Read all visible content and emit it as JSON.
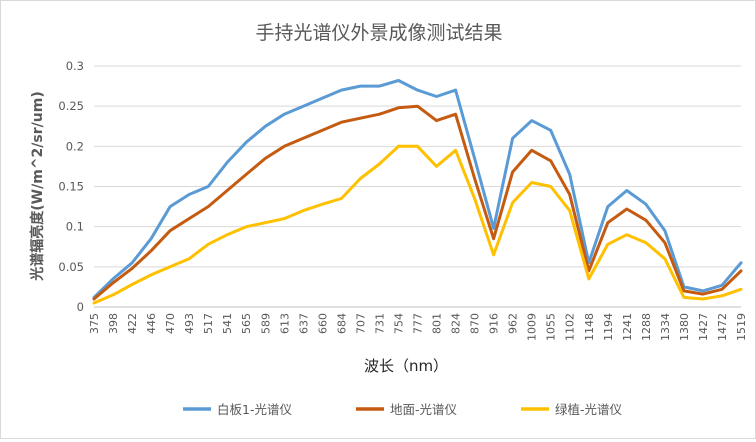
{
  "chart_data": {
    "type": "line",
    "title": "手持光谱仪外景成像测试结果",
    "xlabel": "波长（nm）",
    "ylabel": "光谱辐亮度(W/m^2/sr/um)",
    "ylim": [
      0,
      0.3
    ],
    "yticks": [
      "0",
      "0.05",
      "0.1",
      "0.15",
      "0.2",
      "0.25",
      "0.3"
    ],
    "grid": "horizontal",
    "legend_position": "bottom",
    "x_tick_labels": [
      "375",
      "398",
      "422",
      "446",
      "470",
      "493",
      "517",
      "541",
      "565",
      "589",
      "613",
      "637",
      "660",
      "684",
      "707",
      "731",
      "754",
      "777",
      "801",
      "824",
      "870",
      "916",
      "962",
      "1009",
      "1055",
      "1102",
      "1148",
      "1194",
      "1241",
      "1288",
      "1334",
      "1380",
      "1427",
      "1472",
      "1519"
    ],
    "x": [
      375,
      398,
      422,
      446,
      470,
      493,
      517,
      541,
      565,
      589,
      613,
      637,
      660,
      684,
      707,
      731,
      754,
      777,
      801,
      824,
      870,
      916,
      962,
      1009,
      1055,
      1102,
      1148,
      1194,
      1241,
      1288,
      1334,
      1380,
      1427,
      1472,
      1519
    ],
    "series": [
      {
        "name": "白板1-光谱仪",
        "color": "#5b9bd5",
        "values": [
          0.012,
          0.035,
          0.055,
          0.085,
          0.125,
          0.14,
          0.15,
          0.18,
          0.205,
          0.225,
          0.24,
          0.25,
          0.26,
          0.27,
          0.275,
          0.275,
          0.282,
          0.27,
          0.262,
          0.27,
          0.185,
          0.098,
          0.21,
          0.232,
          0.22,
          0.165,
          0.055,
          0.125,
          0.145,
          0.128,
          0.095,
          0.025,
          0.02,
          0.027,
          0.055
        ]
      },
      {
        "name": "地面-光谱仪",
        "color": "#c55a11",
        "values": [
          0.01,
          0.03,
          0.048,
          0.07,
          0.095,
          0.11,
          0.125,
          0.145,
          0.165,
          0.185,
          0.2,
          0.21,
          0.22,
          0.23,
          0.235,
          0.24,
          0.248,
          0.25,
          0.232,
          0.24,
          0.16,
          0.085,
          0.168,
          0.195,
          0.182,
          0.14,
          0.045,
          0.105,
          0.122,
          0.108,
          0.08,
          0.02,
          0.016,
          0.022,
          0.045
        ]
      },
      {
        "name": "绿植-光谱仪",
        "color": "#ffc000",
        "values": [
          0.005,
          0.015,
          0.028,
          0.04,
          0.05,
          0.06,
          0.078,
          0.09,
          0.1,
          0.105,
          0.11,
          0.12,
          0.128,
          0.135,
          0.16,
          0.178,
          0.2,
          0.2,
          0.175,
          0.195,
          0.135,
          0.065,
          0.13,
          0.155,
          0.15,
          0.12,
          0.035,
          0.078,
          0.09,
          0.08,
          0.06,
          0.012,
          0.01,
          0.014,
          0.022
        ]
      }
    ]
  }
}
